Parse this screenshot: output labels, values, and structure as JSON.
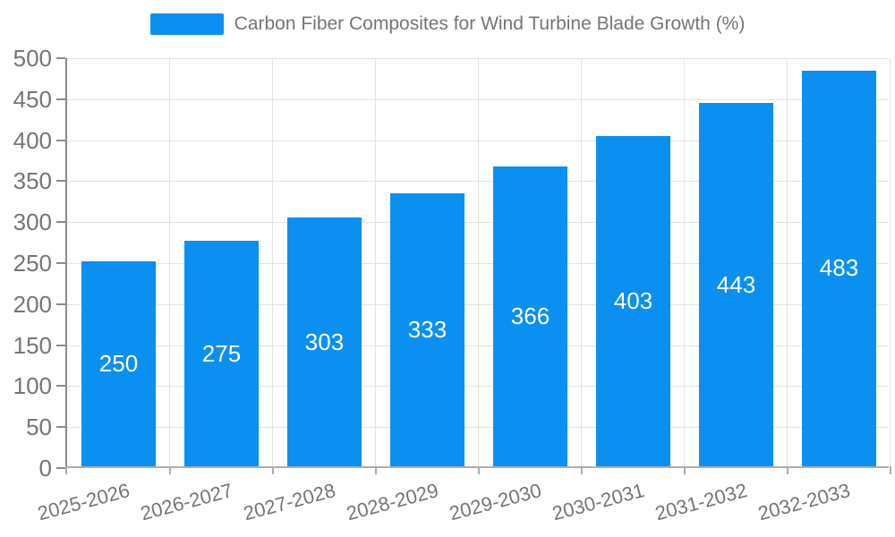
{
  "chart_data": {
    "type": "bar",
    "title": "Carbon Fiber Composites for Wind Turbine Blade Growth (%)",
    "categories": [
      "2025-2026",
      "2026-2027",
      "2027-2028",
      "2028-2029",
      "2029-2030",
      "2030-2031",
      "2031-2032",
      "2032-2033"
    ],
    "values": [
      250,
      275,
      303,
      333,
      366,
      403,
      443,
      483
    ],
    "xlabel": "",
    "ylabel": "",
    "ylim": [
      0,
      500
    ],
    "ytick_step": 50,
    "grid": true,
    "legend_position": "top",
    "value_labels": "inside-center",
    "colors": {
      "bar": "#0b90f2",
      "bar_value_text": "#ffffff",
      "axis_text": "#757575",
      "legend_text": "#757575",
      "gridline": "#e3e3e3",
      "axis_line": "#8c8c8c",
      "background": "#ffffff"
    }
  }
}
